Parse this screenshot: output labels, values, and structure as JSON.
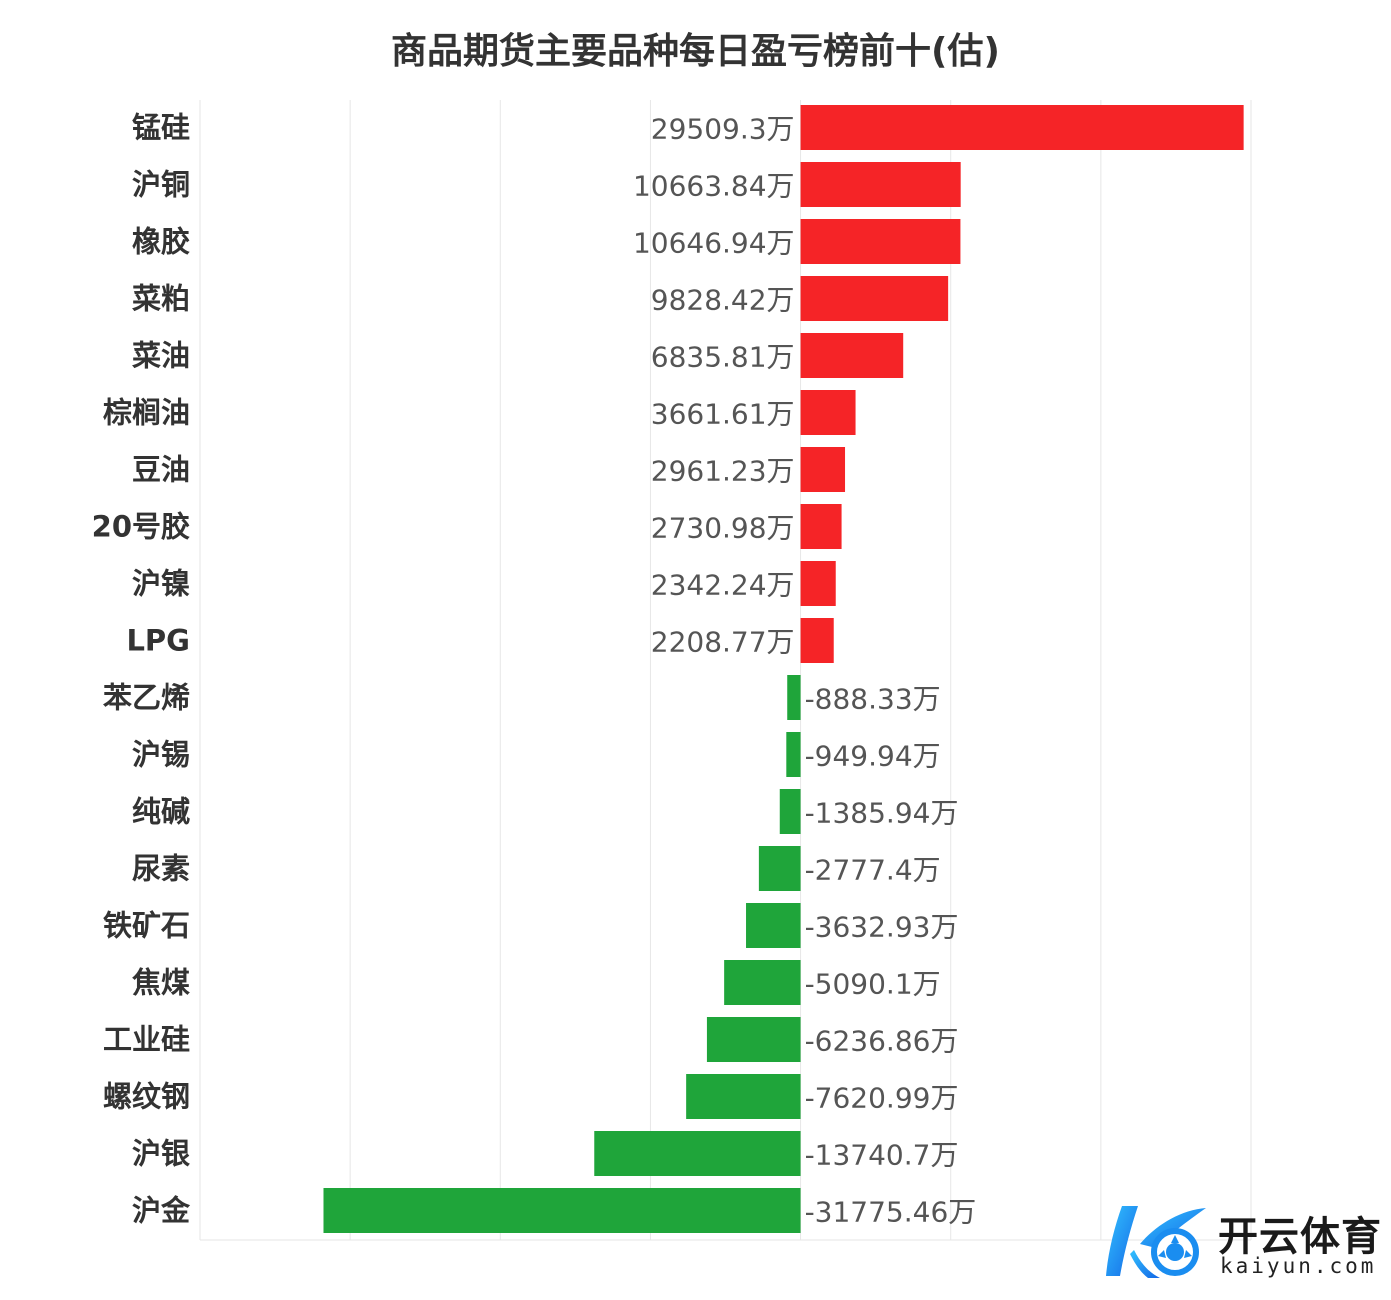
{
  "chart_data": {
    "type": "bar",
    "orientation": "horizontal",
    "title": "商品期货主要品种每日盈亏榜前十(估)",
    "unit": "万",
    "categories": [
      "锰硅",
      "沪铜",
      "橡胶",
      "菜粕",
      "菜油",
      "棕榈油",
      "豆油",
      "20号胶",
      "沪镍",
      "LPG",
      "苯乙烯",
      "沪锡",
      "纯碱",
      "尿素",
      "铁矿石",
      "焦煤",
      "工业硅",
      "螺纹钢",
      "沪银",
      "沪金"
    ],
    "values": [
      29509.3,
      10663.84,
      10646.94,
      9828.42,
      6835.81,
      3661.61,
      2961.23,
      2730.98,
      2342.24,
      2208.77,
      -888.33,
      -949.94,
      -1385.94,
      -2777.4,
      -3632.93,
      -5090.1,
      -6236.86,
      -7620.99,
      -13740.7,
      -31775.46
    ],
    "value_labels": [
      "29509.3万",
      "10663.84万",
      "10646.94万",
      "9828.42万",
      "6835.81万",
      "3661.61万",
      "2961.23万",
      "2730.98万",
      "2342.24万",
      "2208.77万",
      "-888.33万",
      "-949.94万",
      "-1385.94万",
      "-2777.4万",
      "-3632.93万",
      "-5090.1万",
      "-6236.86万",
      "-7620.99万",
      "-13740.7万",
      "-31775.46万"
    ],
    "xlim": [
      -40000,
      30000
    ],
    "grid": true,
    "colors": {
      "positive": "#f52427",
      "negative": "#1fa53a",
      "grid": "#e6e6e6"
    }
  },
  "logo": {
    "cn": "开云体育",
    "en": "kaiyun.com"
  }
}
